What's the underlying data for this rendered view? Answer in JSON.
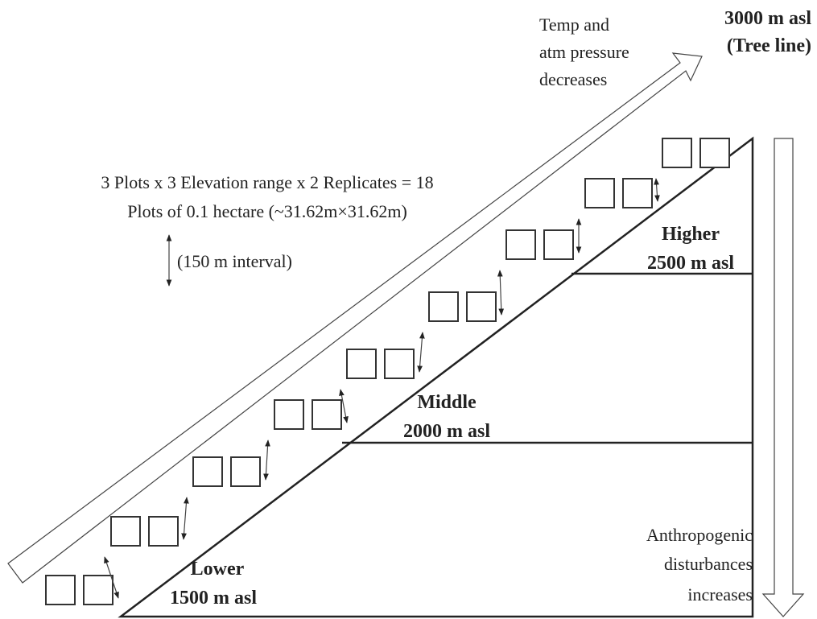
{
  "top_note": [
    "Temp and",
    "atm pressure",
    "decreases"
  ],
  "tree_line": [
    "3000 m asl",
    "(Tree line)"
  ],
  "design": [
    "3 Plots x 3 Elevation range x 2 Replicates = 18",
    "Plots of 0.1 hectare (~31.62m×31.62m)"
  ],
  "interval": "(150 m interval)",
  "zones": [
    {
      "name": "Higher",
      "elevation": "2500 m asl"
    },
    {
      "name": "Middle",
      "elevation": "2000 m asl"
    },
    {
      "name": "Lower",
      "elevation": "1500 m asl"
    }
  ],
  "side_note": [
    "Anthropogenic",
    "disturbances",
    "increases"
  ]
}
